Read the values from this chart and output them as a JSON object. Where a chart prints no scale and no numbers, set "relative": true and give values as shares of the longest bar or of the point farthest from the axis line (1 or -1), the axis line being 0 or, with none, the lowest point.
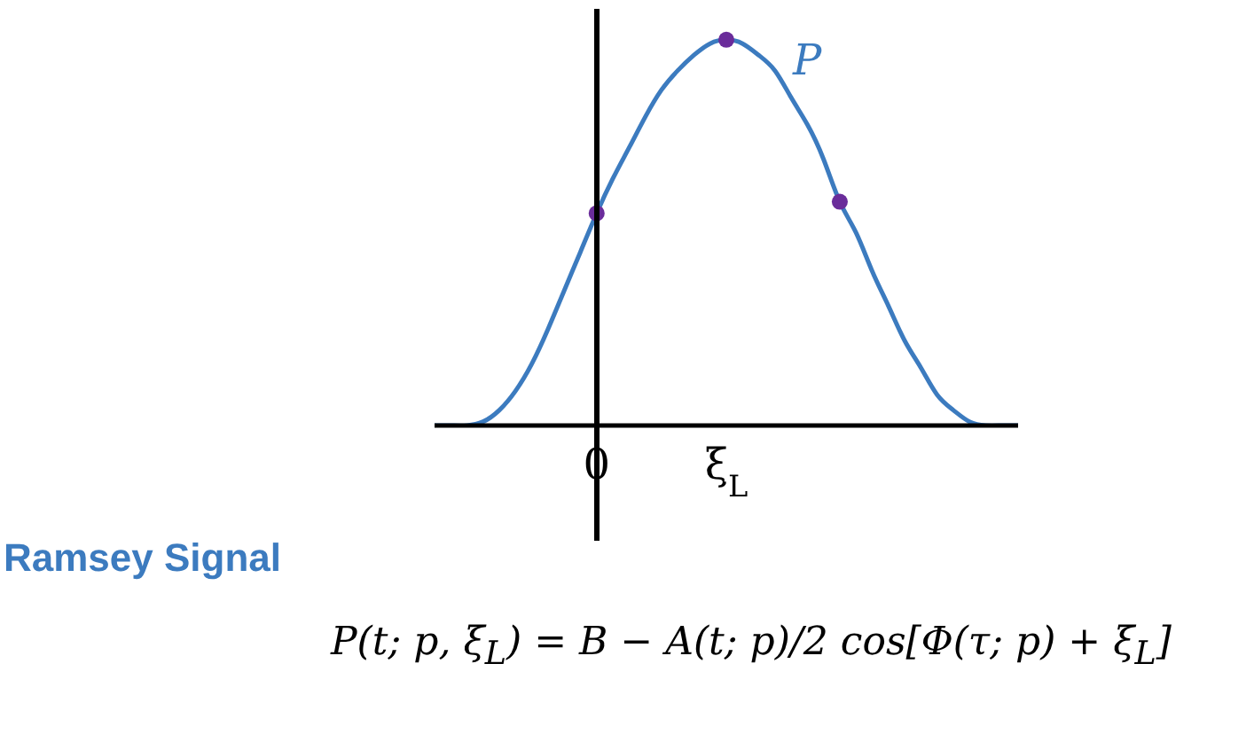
{
  "chart_data": {
    "type": "line",
    "relative": true,
    "title": "Ramsey Signal",
    "annotations": [
      "P",
      "P(t; p, ξ$_{L}$) = B − A(t; p)/2 cos[Φ(τ; p) + ξ$_{L}$]"
    ],
    "categories": [
      null,
      null,
      null,
      null,
      null,
      null,
      null,
      null,
      null,
      null,
      "0",
      null,
      null,
      null,
      null,
      null,
      null,
      null,
      "ξ$_{L}$",
      null,
      null,
      null,
      null,
      null,
      null,
      null,
      null,
      null,
      null,
      null,
      null,
      null,
      null,
      null,
      null,
      null,
      null
    ],
    "series": [
      {
        "color": "#3c7bbf",
        "marker": "none",
        "values": [
          0,
          0,
          0,
          0.01,
          0.04,
          0.09,
          0.16,
          0.25,
          0.35,
          0.45,
          0.55,
          0.64,
          0.72,
          0.8,
          0.87,
          0.92,
          0.96,
          0.99,
          1,
          0.99,
          0.96,
          0.92,
          0.85,
          0.78,
          0.69,
          0.58,
          0.5,
          0.4,
          0.31,
          0.22,
          0.15,
          0.08,
          0.04,
          0.01,
          0,
          0,
          0
        ]
      },
      {
        "type": "scatter",
        "color": "#6a2c9a",
        "marker": "circle",
        "values": [
          null,
          null,
          null,
          null,
          null,
          null,
          null,
          null,
          null,
          null,
          0.55,
          null,
          null,
          null,
          null,
          null,
          null,
          null,
          1,
          null,
          null,
          null,
          null,
          null,
          null,
          0.58,
          null,
          null,
          null,
          null,
          null,
          null,
          null,
          null,
          null,
          null,
          null
        ]
      }
    ]
  }
}
